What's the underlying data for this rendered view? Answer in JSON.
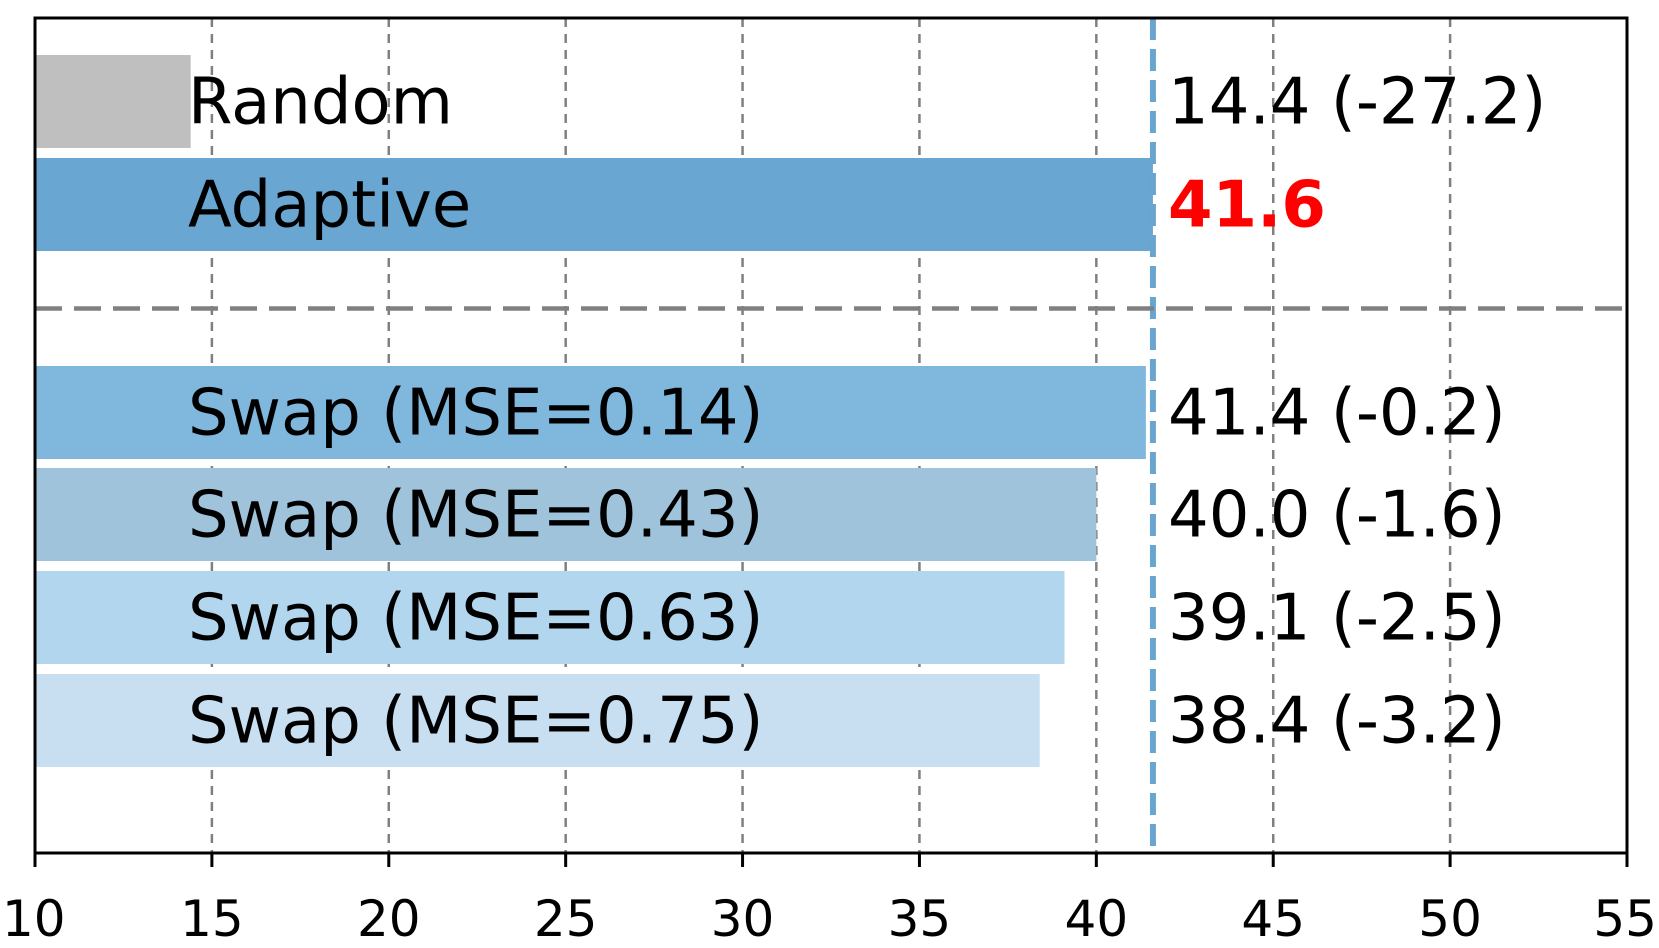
{
  "chart_data": {
    "type": "bar",
    "orientation": "horizontal",
    "title": "",
    "xlabel": "",
    "ylabel": "",
    "xlim": [
      10,
      55
    ],
    "xticks": [
      "10",
      "15",
      "20",
      "25",
      "30",
      "35",
      "40",
      "45",
      "50",
      "55"
    ],
    "grid": "vertical dashed",
    "reference_value": 41.6,
    "reference_color": "#6aa5d0",
    "separator_after_index": 1,
    "bars": [
      {
        "label": "Random",
        "value": 14.4,
        "annotation": "14.4 (-27.2)",
        "color": "#bfbfbf",
        "annotation_color": "#000000",
        "annotation_bold": false
      },
      {
        "label": "Adaptive",
        "value": 41.6,
        "annotation": "41.6",
        "color": "#69a6d1",
        "annotation_color": "#ff0000",
        "annotation_bold": true
      },
      {
        "label": "Swap (MSE=0.14)",
        "value": 41.4,
        "annotation": "41.4 (-0.2)",
        "color": "#80b7dc",
        "annotation_color": "#000000",
        "annotation_bold": false
      },
      {
        "label": "Swap (MSE=0.43)",
        "value": 40.0,
        "annotation": "40.0 (-1.6)",
        "color": "#a0c3dc",
        "annotation_color": "#000000",
        "annotation_bold": false
      },
      {
        "label": "Swap (MSE=0.63)",
        "value": 39.1,
        "annotation": "39.1 (-2.5)",
        "color": "#b3d6ef",
        "annotation_color": "#000000",
        "annotation_bold": false
      },
      {
        "label": "Swap (MSE=0.75)",
        "value": 38.4,
        "annotation": "38.4 (-3.2)",
        "color": "#c8dff2",
        "annotation_color": "#000000",
        "annotation_bold": false
      }
    ]
  }
}
